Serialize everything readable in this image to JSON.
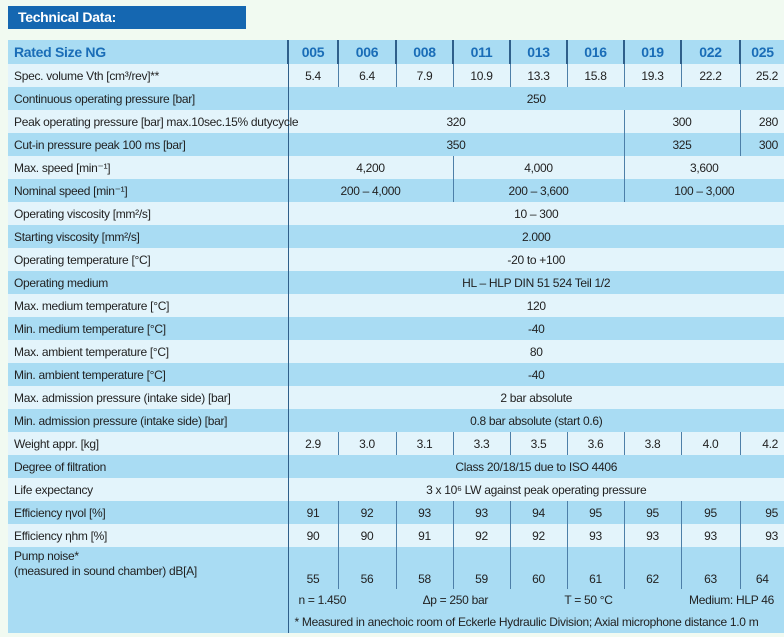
{
  "title": "Technical Data:",
  "header": {
    "label": "Rated Size NG",
    "sizes": [
      "005",
      "006",
      "008",
      "011",
      "013",
      "016",
      "019",
      "022",
      "025"
    ]
  },
  "rows": [
    {
      "label": "Spec. volume Vth [cm³/rev]**",
      "cells": [
        {
          "v": "5.4",
          "span": 1
        },
        {
          "v": "6.4",
          "span": 1
        },
        {
          "v": "7.9",
          "span": 1
        },
        {
          "v": "10.9",
          "span": 1
        },
        {
          "v": "13.3",
          "span": 1
        },
        {
          "v": "15.8",
          "span": 1
        },
        {
          "v": "19.3",
          "span": 1
        },
        {
          "v": "22.2",
          "span": 1
        },
        {
          "v": "25.2",
          "span": 1
        }
      ]
    },
    {
      "label": "Continuous operating pressure [bar]",
      "cells": [
        {
          "v": "250",
          "span": 9
        }
      ]
    },
    {
      "label": "Peak operating pressure [bar] max.10sec.15% dutycycle",
      "cells": [
        {
          "v": "320",
          "span": 6
        },
        {
          "v": "300",
          "span": 2
        },
        {
          "v": "280",
          "span": 1
        }
      ]
    },
    {
      "label": "Cut-in pressure peak 100 ms [bar]",
      "cells": [
        {
          "v": "350",
          "span": 6
        },
        {
          "v": "325",
          "span": 2
        },
        {
          "v": "300",
          "span": 1
        }
      ]
    },
    {
      "label": "Max. speed [min⁻¹]",
      "cells": [
        {
          "v": "4,200",
          "span": 3
        },
        {
          "v": "4,000",
          "span": 3
        },
        {
          "v": "3,600",
          "span": 3
        }
      ]
    },
    {
      "label": "Nominal speed [min⁻¹]",
      "cells": [
        {
          "v": "200 – 4,000",
          "span": 3
        },
        {
          "v": "200 – 3,600",
          "span": 3
        },
        {
          "v": "100 – 3,000",
          "span": 3
        }
      ]
    },
    {
      "label": "Operating viscosity [mm²/s]",
      "cells": [
        {
          "v": "10 – 300",
          "span": 9
        }
      ]
    },
    {
      "label": "Starting viscosity [mm²/s]",
      "cells": [
        {
          "v": "2.000",
          "span": 9
        }
      ]
    },
    {
      "label": "Operating temperature [°C]",
      "cells": [
        {
          "v": "-20 to +100",
          "span": 9
        }
      ]
    },
    {
      "label": "Operating medium",
      "cells": [
        {
          "v": "HL – HLP DIN 51 524 Teil 1/2",
          "span": 9
        }
      ]
    },
    {
      "label": "Max. medium temperature [°C]",
      "cells": [
        {
          "v": "120",
          "span": 9
        }
      ]
    },
    {
      "label": "Min. medium temperature [°C]",
      "cells": [
        {
          "v": "-40",
          "span": 9
        }
      ]
    },
    {
      "label": "Max. ambient temperature [°C]",
      "cells": [
        {
          "v": "80",
          "span": 9
        }
      ]
    },
    {
      "label": "Min. ambient temperature [°C]",
      "cells": [
        {
          "v": "-40",
          "span": 9
        }
      ]
    },
    {
      "label": "Max. admission pressure (intake side) [bar]",
      "cells": [
        {
          "v": "2 bar absolute",
          "span": 9
        }
      ]
    },
    {
      "label": "Min. admission pressure (intake side) [bar]",
      "cells": [
        {
          "v": "0.8 bar absolute (start 0.6)",
          "span": 9
        }
      ]
    },
    {
      "label": "Weight appr. [kg]",
      "cells": [
        {
          "v": "2.9",
          "span": 1
        },
        {
          "v": "3.0",
          "span": 1
        },
        {
          "v": "3.1",
          "span": 1
        },
        {
          "v": "3.3",
          "span": 1
        },
        {
          "v": "3.5",
          "span": 1
        },
        {
          "v": "3.6",
          "span": 1
        },
        {
          "v": "3.8",
          "span": 1
        },
        {
          "v": "4.0",
          "span": 1
        },
        {
          "v": "4.2",
          "span": 1
        }
      ]
    },
    {
      "label": "Degree of filtration",
      "cells": [
        {
          "v": "Class 20/18/15 due to ISO 4406",
          "span": 9
        }
      ]
    },
    {
      "label": "Life expectancy",
      "cells": [
        {
          "v": "3 x 10⁶ LW against peak operating pressure",
          "span": 9
        }
      ]
    },
    {
      "label": "Efficiency ηvol [%]",
      "cells": [
        {
          "v": "91",
          "span": 1
        },
        {
          "v": "92",
          "span": 1
        },
        {
          "v": "93",
          "span": 1
        },
        {
          "v": "93",
          "span": 1
        },
        {
          "v": "94",
          "span": 1
        },
        {
          "v": "95",
          "span": 1
        },
        {
          "v": "95",
          "span": 1
        },
        {
          "v": "95",
          "span": 1
        },
        {
          "v": "95",
          "span": 1
        }
      ]
    },
    {
      "label": "Efficiency ηhm [%]",
      "cells": [
        {
          "v": "90",
          "span": 1
        },
        {
          "v": "90",
          "span": 1
        },
        {
          "v": "91",
          "span": 1
        },
        {
          "v": "92",
          "span": 1
        },
        {
          "v": "92",
          "span": 1
        },
        {
          "v": "93",
          "span": 1
        },
        {
          "v": "93",
          "span": 1
        },
        {
          "v": "93",
          "span": 1
        },
        {
          "v": "93",
          "span": 1
        }
      ]
    }
  ],
  "pump_noise": {
    "label_line1": "Pump noise*",
    "label_line2": "(measured in sound chamber) dB[A]",
    "values": [
      "55",
      "56",
      "58",
      "59",
      "60",
      "61",
      "62",
      "63",
      "64"
    ],
    "conditions": [
      "n = 1.450",
      "Δp = 250 bar",
      "T = 50 °C",
      "Medium: HLP 46"
    ],
    "footnote": "* Measured in anechoic room of Eckerle Hydraulic Division; Axial microphone distance 1.0 m"
  },
  "colors": {
    "title_bar": "#1567b1",
    "row_dark": "#a9dcf3",
    "row_light": "#e3f4fb",
    "header_text": "#1a6db7"
  }
}
